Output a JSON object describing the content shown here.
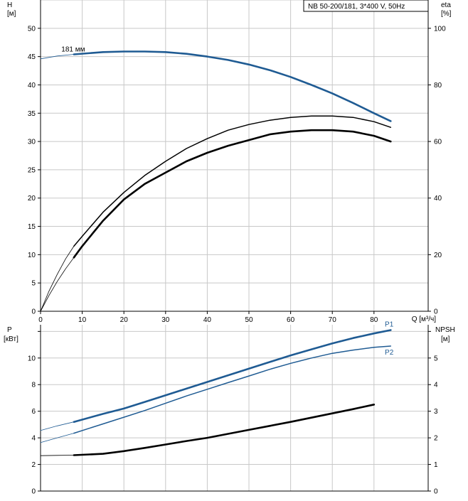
{
  "chart_data": [
    {
      "type": "line",
      "title": "NB 50-200/181, 3*400 V, 50Hz",
      "ylabel": "H",
      "yunit": "[м]",
      "y2label": "eta",
      "y2unit": "[%]",
      "xlabel": "Q [м³/ч]",
      "xlim": [
        0,
        93
      ],
      "ylim": [
        0,
        55
      ],
      "y2lim": [
        0,
        110
      ],
      "xticks": [
        0,
        10,
        20,
        30,
        40,
        50,
        60,
        70,
        80
      ],
      "yticks": [
        0,
        5,
        10,
        15,
        20,
        25,
        30,
        35,
        40,
        45,
        50
      ],
      "y2ticks": [
        0,
        20,
        40,
        60,
        80,
        100
      ],
      "grid": true,
      "colors": {
        "head": "#1f5b93",
        "eta": "#000000"
      },
      "annotation": "181 мм",
      "series": [
        {
          "id": "head",
          "axis": "y",
          "style": "bold",
          "x": [
            8,
            15,
            20,
            25,
            30,
            35,
            40,
            45,
            50,
            55,
            60,
            65,
            70,
            75,
            80,
            84
          ],
          "values": [
            45.4,
            45.8,
            45.9,
            45.9,
            45.8,
            45.5,
            45.0,
            44.4,
            43.6,
            42.6,
            41.4,
            40.0,
            38.5,
            36.8,
            35.0,
            33.6
          ]
        },
        {
          "id": "head-ext",
          "axis": "y",
          "style": "thin",
          "x": [
            0,
            4,
            8
          ],
          "values": [
            44.6,
            45.1,
            45.4
          ]
        },
        {
          "id": "eta-upper",
          "axis": "y2",
          "style": "medium",
          "x": [
            8,
            10,
            15,
            20,
            25,
            30,
            35,
            40,
            45,
            50,
            55,
            60,
            65,
            70,
            75,
            80,
            84
          ],
          "values": [
            23,
            26.5,
            35,
            42,
            48,
            53,
            57.5,
            61,
            64,
            66,
            67.5,
            68.5,
            69,
            69,
            68.5,
            67,
            65
          ]
        },
        {
          "id": "eta-upper-ext",
          "axis": "y2",
          "style": "thin",
          "x": [
            0,
            2,
            4,
            6,
            8
          ],
          "values": [
            0,
            7,
            13,
            18.5,
            23
          ]
        },
        {
          "id": "eta-lower",
          "axis": "y2",
          "style": "bold",
          "x": [
            8,
            10,
            15,
            20,
            25,
            30,
            35,
            40,
            45,
            50,
            55,
            60,
            65,
            70,
            75,
            80,
            84
          ],
          "values": [
            19,
            23,
            32,
            39.5,
            45,
            49,
            53,
            56,
            58.5,
            60.5,
            62.5,
            63.5,
            64,
            64,
            63.5,
            62,
            60
          ]
        },
        {
          "id": "eta-lower-ext",
          "axis": "y2",
          "style": "thin",
          "x": [
            0,
            2,
            4,
            6,
            8
          ],
          "values": [
            0,
            5.5,
            10.5,
            15,
            19
          ]
        }
      ]
    },
    {
      "type": "line",
      "ylabel": "P",
      "yunit": "[кВт]",
      "y2label": "NPSH",
      "y2unit": "[м]",
      "xlim": [
        0,
        93
      ],
      "ylim": [
        0,
        12.5
      ],
      "y2lim": [
        0,
        6.25
      ],
      "yticks": [
        0,
        2,
        4,
        6,
        8,
        10
      ],
      "y2ticks": [
        0,
        1,
        2,
        3,
        4,
        5
      ],
      "grid": true,
      "colors": {
        "P1": "#1f5b93",
        "P2": "#1f5b93",
        "NPSH": "#000000"
      },
      "series": [
        {
          "id": "p1",
          "name": "P1",
          "axis": "y",
          "style": "bold",
          "x": [
            8,
            15,
            20,
            25,
            30,
            35,
            40,
            45,
            50,
            55,
            60,
            65,
            70,
            75,
            80,
            84
          ],
          "values": [
            5.2,
            5.8,
            6.2,
            6.7,
            7.2,
            7.7,
            8.2,
            8.7,
            9.2,
            9.7,
            10.2,
            10.65,
            11.1,
            11.5,
            11.85,
            12.1
          ]
        },
        {
          "id": "p1-ext",
          "axis": "y",
          "style": "thin",
          "x": [
            0,
            4,
            8
          ],
          "values": [
            4.55,
            4.9,
            5.2
          ]
        },
        {
          "id": "p2",
          "name": "P2",
          "axis": "y",
          "style": "medium",
          "x": [
            8,
            15,
            20,
            25,
            30,
            35,
            40,
            45,
            50,
            55,
            60,
            65,
            70,
            75,
            80,
            84
          ],
          "values": [
            4.35,
            5.05,
            5.55,
            6.05,
            6.6,
            7.15,
            7.65,
            8.15,
            8.65,
            9.15,
            9.6,
            10.0,
            10.35,
            10.6,
            10.8,
            10.9
          ]
        },
        {
          "id": "p2-ext",
          "axis": "y",
          "style": "thin",
          "x": [
            0,
            4,
            8
          ],
          "values": [
            3.65,
            4.0,
            4.35
          ]
        },
        {
          "id": "npsh",
          "axis": "y2",
          "style": "bold",
          "x": [
            8,
            15,
            20,
            25,
            30,
            35,
            40,
            45,
            50,
            55,
            60,
            65,
            70,
            75,
            80
          ],
          "values": [
            1.35,
            1.4,
            1.5,
            1.62,
            1.75,
            1.88,
            2.0,
            2.15,
            2.3,
            2.45,
            2.6,
            2.76,
            2.92,
            3.08,
            3.25
          ]
        },
        {
          "id": "npsh-ext",
          "axis": "y2",
          "style": "thin",
          "x": [
            0,
            4,
            8
          ],
          "values": [
            1.33,
            1.34,
            1.35
          ]
        }
      ]
    }
  ]
}
